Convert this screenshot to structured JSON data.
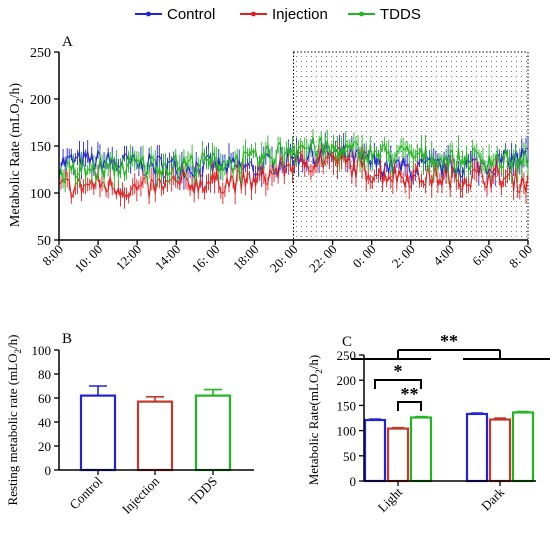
{
  "legend": [
    {
      "name": "Control",
      "color": "#2323d6"
    },
    {
      "name": "Injection",
      "color": "#e02020"
    },
    {
      "name": "TDDS",
      "color": "#22b522"
    }
  ],
  "chart_data": [
    {
      "panel": "A",
      "type": "line",
      "ylabel": "Metabolic Rate (mLO2/h)",
      "ylabel_parts": [
        "Metabolic Rate (mLO",
        "2",
        "/h)"
      ],
      "ylim": [
        50,
        250
      ],
      "yticks": [
        "50",
        "100",
        "150",
        "200",
        "250"
      ],
      "xticks": [
        "8:00",
        "10: 00",
        "12:00",
        "14:00",
        "16: 00",
        "18:00",
        "20: 00",
        "22: 00",
        "0: 00",
        "2: 00",
        "4:00",
        "6:00",
        "8: 00"
      ],
      "x_hours": [
        0,
        24
      ],
      "dark_shading_hours": [
        12,
        24
      ],
      "series": [
        {
          "name": "Control",
          "color": "#2323d6",
          "anchors_hour": [
            0,
            2,
            4,
            6,
            8,
            10,
            12,
            14,
            16,
            18,
            20,
            22,
            24
          ],
          "anchors_value": [
            132,
            134,
            130,
            128,
            128,
            126,
            138,
            142,
            132,
            125,
            128,
            130,
            140
          ]
        },
        {
          "name": "Injection",
          "color": "#e02020",
          "anchors_hour": [
            0,
            2,
            4,
            6,
            8,
            10,
            12,
            14,
            16,
            18,
            20,
            22,
            24
          ],
          "anchors_value": [
            105,
            110,
            103,
            110,
            112,
            112,
            132,
            136,
            122,
            118,
            116,
            118,
            112
          ]
        },
        {
          "name": "TDDS",
          "color": "#22b522",
          "anchors_hour": [
            0,
            2,
            4,
            6,
            8,
            10,
            12,
            14,
            16,
            18,
            20,
            22,
            24
          ],
          "anchors_value": [
            120,
            125,
            130,
            130,
            132,
            133,
            150,
            146,
            142,
            140,
            135,
            137,
            130
          ]
        }
      ]
    },
    {
      "panel": "B",
      "type": "bar",
      "ylabel": "Resting metabolic rate (mLO2/h)",
      "ylabel_parts": [
        "Resting metabolic rate (mLO",
        "2",
        "/h)"
      ],
      "ylim": [
        0,
        100
      ],
      "yticks": [
        "0",
        "20",
        "40",
        "60",
        "80",
        "100"
      ],
      "categories": [
        "Control",
        "Injection",
        "TDDS"
      ],
      "values": [
        62,
        57,
        62
      ],
      "errors": [
        8,
        4,
        5
      ],
      "colors": [
        "#2323d6",
        "#c0392b",
        "#22b522"
      ]
    },
    {
      "panel": "C",
      "type": "bar",
      "ylabel": "Metabolic Rate(mLO2/h)",
      "ylabel_parts": [
        "Metabolic Rate(mLO",
        "2",
        "/h)"
      ],
      "ylim": [
        0,
        250
      ],
      "yticks": [
        "0",
        "50",
        "100",
        "150",
        "200",
        "250"
      ],
      "categories": [
        "Light",
        "Dark"
      ],
      "series": [
        {
          "name": "Control",
          "color": "#2323d6",
          "values": [
            121,
            133
          ],
          "errors": [
            2,
            2
          ]
        },
        {
          "name": "Injection",
          "color": "#c0392b",
          "values": [
            104,
            122
          ],
          "errors": [
            2,
            3
          ]
        },
        {
          "name": "TDDS",
          "color": "#22b522",
          "values": [
            126,
            136
          ],
          "errors": [
            2,
            2
          ]
        }
      ],
      "significance": [
        "**",
        "*",
        "**"
      ]
    }
  ]
}
